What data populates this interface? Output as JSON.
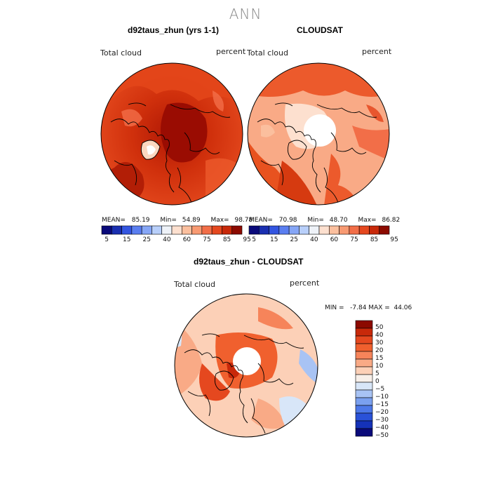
{
  "figure": {
    "title": "ANN"
  },
  "panels": {
    "model": {
      "title": "d92taus_zhun (yrs 1-1)",
      "variable": "Total cloud",
      "units": "percent",
      "stats": {
        "mean_label": "MEAN=",
        "mean": "85.19",
        "min_label": "Min=",
        "min": "54.89",
        "max_label": "Max=",
        "max": "98.78"
      }
    },
    "obs": {
      "title": "CLOUDSAT",
      "variable": "Total cloud",
      "units": "percent",
      "stats": {
        "mean_label": "MEAN=",
        "mean": "70.98",
        "min_label": "Min=",
        "min": "48.70",
        "max_label": "Max=",
        "max": "86.82"
      }
    },
    "diff": {
      "title": "d92taus_zhun - CLOUDSAT",
      "variable": "Total cloud",
      "units": "percent",
      "stats_text": "MIN =   -7.84 MAX =  44.06"
    }
  },
  "colorbars": {
    "absolute": {
      "colors": [
        "#0a0a7a",
        "#1a2fb0",
        "#3355e0",
        "#5a7ef0",
        "#86a6f6",
        "#b8cffa",
        "#eef2f8",
        "#fde0cf",
        "#fbbf9e",
        "#f89a72",
        "#f26e48",
        "#e5481f",
        "#c8290a",
        "#8c0a00"
      ],
      "tick_labels": [
        "5",
        "15",
        "25",
        "40",
        "60",
        "75",
        "85",
        "95"
      ]
    },
    "difference": {
      "colors": [
        "#8c0a00",
        "#c8290a",
        "#e5481f",
        "#f0602e",
        "#f6845a",
        "#f9aa86",
        "#fcd0b7",
        "#f7efe9",
        "#d8e6f8",
        "#a8c3f4",
        "#7aa0ef",
        "#4d78e8",
        "#2a52d8",
        "#1532b8",
        "#0a0a7a"
      ],
      "tick_labels": [
        "50",
        "40",
        "30",
        "20",
        "15",
        "10",
        "5",
        "0",
        "−5",
        "−10",
        "−15",
        "−20",
        "−30",
        "−40",
        "−50"
      ]
    }
  },
  "map_style": {
    "land_outline_color": "#000000",
    "pole_hole_color": "#ffffff",
    "projection": "north polar stereographic"
  }
}
